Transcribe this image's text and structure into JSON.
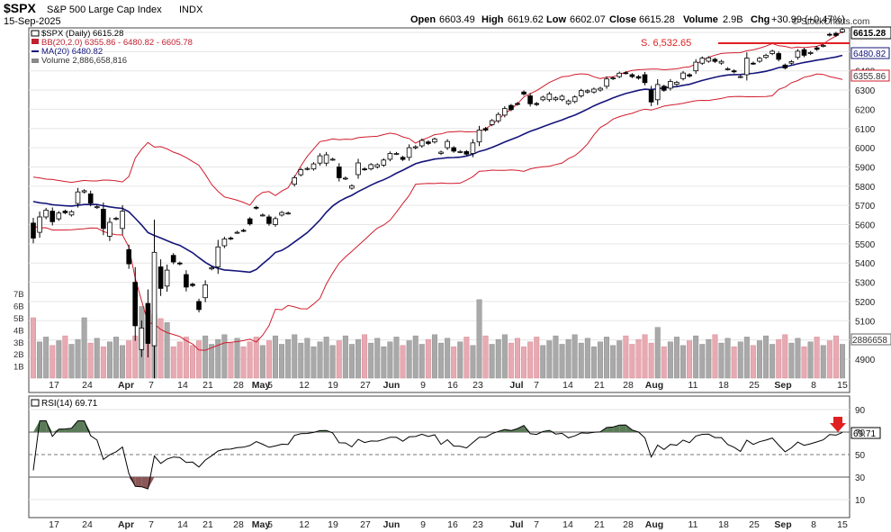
{
  "header": {
    "symbol": "$SPX",
    "name": "S&P 500 Large Cap Index",
    "exchange": "INDX",
    "date": "15-Sep-2025",
    "open_label": "Open",
    "open": "6603.49",
    "high_label": "High",
    "high": "6619.62",
    "low_label": "Low",
    "low": "6602.07",
    "close_label": "Close",
    "close": "6615.28",
    "volume_label": "Volume",
    "volume": "2.9B",
    "chg_label": "Chg",
    "chg": "+30.99 (+0.47%)",
    "watermark": "© StockCharts.com"
  },
  "legend": [
    {
      "text": "$SPX (Daily) 6615.28",
      "color": "#000000"
    },
    {
      "text": "BB(20,2.0) 6355.86 - 6480.82 - 6605.78",
      "color": "#c0202f"
    },
    {
      "text": "MA(20) 6480.82",
      "color": "#14147a"
    },
    {
      "text": "Volume 2,886,658,816",
      "color": "#333333"
    }
  ],
  "annotation": {
    "text": "S. 6,532.65",
    "color": "#e02020"
  },
  "price_tags": [
    "6615.28",
    "6480.82",
    "6355.86",
    "2886658"
  ],
  "rsi_panel": {
    "label": "RSI(14) 69.71",
    "value_tag": "69.71"
  },
  "colors": {
    "bb": "#d01c2c",
    "ma": "#14147a",
    "up": "#ffffff",
    "down": "#000000",
    "vol_up": "#a9a9a9",
    "vol_down": "#e8aab2",
    "rsi_fill": "#5a7a58",
    "rsi_low_fill": "#8a5656",
    "arrow": "#e02020"
  },
  "chart_data": [
    {
      "type": "candlestick",
      "title": "$SPX (Daily)",
      "dates": [
        "2025-03-13",
        "2025-03-14",
        "2025-03-17",
        "2025-03-18",
        "2025-03-19",
        "2025-03-20",
        "2025-03-21",
        "2025-03-24",
        "2025-03-25",
        "2025-03-26",
        "2025-03-27",
        "2025-03-28",
        "2025-03-31",
        "2025-04-01",
        "2025-04-02",
        "2025-04-03",
        "2025-04-04",
        "2025-04-07",
        "2025-04-08",
        "2025-04-09",
        "2025-04-10",
        "2025-04-11",
        "2025-04-14",
        "2025-04-15",
        "2025-04-16",
        "2025-04-17",
        "2025-04-21",
        "2025-04-22",
        "2025-04-23",
        "2025-04-24",
        "2025-04-25",
        "2025-04-28",
        "2025-04-29",
        "2025-04-30",
        "2025-05-01",
        "2025-05-02",
        "2025-05-05",
        "2025-05-06",
        "2025-05-07",
        "2025-05-08",
        "2025-05-09",
        "2025-05-12",
        "2025-05-13",
        "2025-05-14",
        "2025-05-15",
        "2025-05-16",
        "2025-05-19",
        "2025-05-20",
        "2025-05-21",
        "2025-05-22",
        "2025-05-23",
        "2025-05-27",
        "2025-05-28",
        "2025-05-29",
        "2025-05-30",
        "2025-06-02",
        "2025-06-03",
        "2025-06-04",
        "2025-06-05",
        "2025-06-06",
        "2025-06-09",
        "2025-06-10",
        "2025-06-11",
        "2025-06-12",
        "2025-06-13",
        "2025-06-16",
        "2025-06-17",
        "2025-06-18",
        "2025-06-20",
        "2025-06-23",
        "2025-06-24",
        "2025-06-25",
        "2025-06-26",
        "2025-06-27",
        "2025-06-30",
        "2025-07-01",
        "2025-07-02",
        "2025-07-03",
        "2025-07-07",
        "2025-07-08",
        "2025-07-09",
        "2025-07-10",
        "2025-07-11",
        "2025-07-14",
        "2025-07-15",
        "2025-07-16",
        "2025-07-17",
        "2025-07-18",
        "2025-07-21",
        "2025-07-22",
        "2025-07-23",
        "2025-07-24",
        "2025-07-25",
        "2025-07-28",
        "2025-07-29",
        "2025-07-30",
        "2025-07-31",
        "2025-08-01",
        "2025-08-04",
        "2025-08-05",
        "2025-08-06",
        "2025-08-07",
        "2025-08-08",
        "2025-08-11",
        "2025-08-12",
        "2025-08-13",
        "2025-08-14",
        "2025-08-15",
        "2025-08-18",
        "2025-08-19",
        "2025-08-20",
        "2025-08-21",
        "2025-08-22",
        "2025-08-25",
        "2025-08-26",
        "2025-08-27",
        "2025-08-28",
        "2025-08-29",
        "2025-09-02",
        "2025-09-03",
        "2025-09-04",
        "2025-09-05",
        "2025-09-08",
        "2025-09-09",
        "2025-09-10",
        "2025-09-11",
        "2025-09-12",
        "2025-09-15"
      ],
      "open": [
        5608,
        5560,
        5640,
        5670,
        5630,
        5670,
        5650,
        5710,
        5770,
        5760,
        5690,
        5680,
        5540,
        5630,
        5580,
        5470,
        5300,
        4950,
        5190,
        4970,
        5380,
        5280,
        5440,
        5400,
        5340,
        5290,
        5200,
        5220,
        5370,
        5380,
        5490,
        5530,
        5560,
        5570,
        5630,
        5690,
        5650,
        5640,
        5600,
        5650,
        5660,
        5810,
        5860,
        5890,
        5890,
        5920,
        5920,
        5940,
        5900,
        5840,
        5790,
        5860,
        5890,
        5890,
        5900,
        5910,
        5940,
        5970,
        5950,
        5950,
        6000,
        6010,
        6030,
        6030,
        5970,
        6000,
        6000,
        5980,
        5980,
        5970,
        6030,
        6100,
        6120,
        6140,
        6170,
        6220,
        6230,
        6290,
        6270,
        6230,
        6250,
        6250,
        6250,
        6250,
        6230,
        6240,
        6270,
        6290,
        6290,
        6300,
        6320,
        6360,
        6370,
        6390,
        6380,
        6370,
        6380,
        6300,
        6250,
        6320,
        6310,
        6330,
        6360,
        6380,
        6400,
        6440,
        6450,
        6460,
        6440,
        6410,
        6400,
        6370,
        6380,
        6440,
        6450,
        6470,
        6490,
        6490,
        6430,
        6440,
        6470,
        6510,
        6490,
        6520,
        6530,
        6590,
        6595,
        6603
      ],
      "close": [
        5530,
        5640,
        5675,
        5615,
        5660,
        5662,
        5667,
        5770,
        5776,
        5712,
        5693,
        5580,
        5612,
        5633,
        5670,
        5396,
        5074,
        5062,
        4982,
        5456,
        5268,
        5363,
        5406,
        5396,
        5275,
        5283,
        5158,
        5287,
        5376,
        5484,
        5525,
        5528,
        5560,
        5569,
        5604,
        5686,
        5650,
        5606,
        5631,
        5663,
        5660,
        5844,
        5886,
        5892,
        5916,
        5958,
        5963,
        5940,
        5844,
        5842,
        5802,
        5921,
        5888,
        5912,
        5911,
        5936,
        5970,
        5970,
        5939,
        6000,
        6005,
        6038,
        6022,
        6045,
        5977,
        6033,
        5982,
        5980,
        5967,
        6025,
        6092,
        6092,
        6141,
        6173,
        6204,
        6198,
        6227,
        6279,
        6229,
        6225,
        6263,
        6280,
        6259,
        6268,
        6243,
        6264,
        6297,
        6296,
        6305,
        6309,
        6358,
        6363,
        6388,
        6389,
        6370,
        6362,
        6339,
        6238,
        6329,
        6299,
        6345,
        6340,
        6389,
        6373,
        6445,
        6466,
        6468,
        6449,
        6449,
        6411,
        6395,
        6370,
        6466,
        6439,
        6465,
        6481,
        6502,
        6460,
        6415,
        6448,
        6502,
        6481,
        6495,
        6512,
        6532,
        6587,
        6584,
        6615
      ]
    },
    {
      "type": "volume",
      "ylabel": "Volume",
      "y_ticks": [
        "1B",
        "2B",
        "3B",
        "4B",
        "5B",
        "6B",
        "7B"
      ]
    },
    {
      "type": "line",
      "title": "RSI(14)",
      "y_ticks": [
        10,
        30,
        50,
        70,
        90
      ],
      "reference_lines": [
        30,
        50,
        70
      ]
    }
  ],
  "x_ticks": [
    "17",
    "24",
    "Apr",
    "7",
    "14",
    "21",
    "28",
    "May",
    "5",
    "12",
    "19",
    "27",
    "Jun",
    "9",
    "16",
    "23",
    "Jul",
    "7",
    "14",
    "21",
    "28",
    "Aug",
    "11",
    "18",
    "25",
    "Sep",
    "8",
    "15"
  ],
  "price_y_ticks": [
    4900,
    5000,
    5100,
    5200,
    5300,
    5400,
    5500,
    5600,
    5700,
    5800,
    5900,
    6000,
    6100,
    6200,
    6300,
    6400,
    6500,
    6600
  ]
}
